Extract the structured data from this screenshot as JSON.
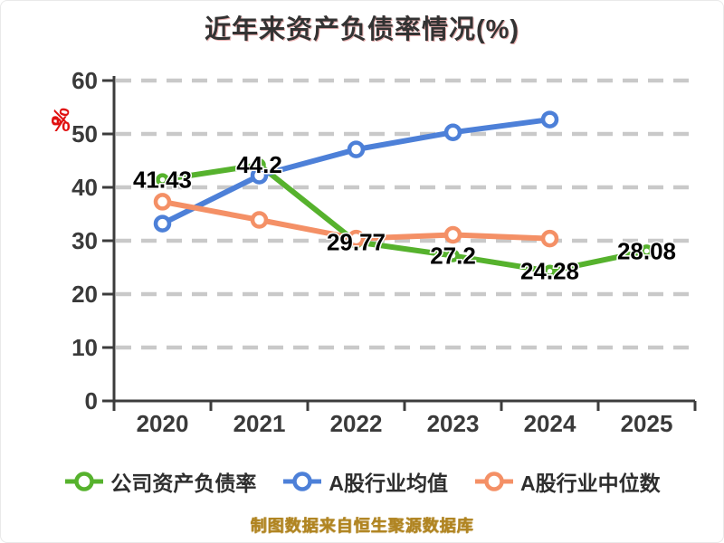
{
  "title": "近年来资产负债率情况(%)",
  "y_axis": {
    "unit": "%",
    "unit_color": "#e01111",
    "ticks": [
      0,
      10,
      20,
      30,
      40,
      50,
      60
    ]
  },
  "chart_data": {
    "type": "line",
    "title": "近年来资产负债率情况(%)",
    "categories": [
      "2020",
      "2021",
      "2022",
      "2023",
      "2024",
      "2025"
    ],
    "ylim": [
      0,
      60
    ],
    "y_ticks": [
      0,
      10,
      20,
      30,
      40,
      50,
      60
    ],
    "grid": "horizontal-dashed",
    "grid_color": "#c9c9c9",
    "axis_color": "#3c3c3c",
    "legend_position": "bottom",
    "series": [
      {
        "name": "公司资产负债率",
        "color": "#56b22d",
        "values": [
          41.43,
          44.2,
          29.77,
          27.2,
          24.28,
          28.08
        ],
        "value_labels": [
          "41.43",
          "44.2",
          "29.77",
          "27.2",
          "24.28",
          "28.08"
        ]
      },
      {
        "name": "A股行业均值",
        "color": "#4d80d8",
        "values": [
          33.2,
          42.2,
          47.1,
          50.3,
          52.7,
          null
        ]
      },
      {
        "name": "A股行业中位数",
        "color": "#f49066",
        "values": [
          37.3,
          33.9,
          30.4,
          31.1,
          30.4,
          null
        ]
      }
    ]
  },
  "footer": {
    "text": "制图数据来自恒生聚源数据库"
  }
}
